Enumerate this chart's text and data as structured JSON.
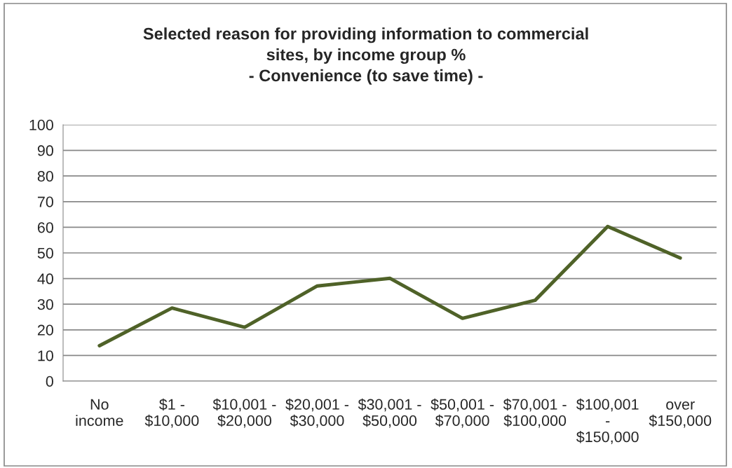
{
  "chart_data": {
    "type": "line",
    "title": "Selected reason for providing information to commercial\nsites, by income group %\n- Convenience (to save time) -",
    "categories": [
      "No\nincome",
      "$1 -\n$10,000",
      "$10,001 -\n$20,000",
      "$20,001 -\n$30,000",
      "$30,001 -\n$50,000",
      "$50,001 -\n$70,000",
      "$70,001 -\n$100,000",
      "$100,001\n-\n$150,000",
      "over\n$150,000"
    ],
    "series": [
      {
        "color": "#4f6228",
        "values": [
          13.8,
          28.5,
          21.0,
          37.1,
          40.1,
          24.5,
          31.5,
          60.3,
          48.0
        ]
      }
    ],
    "ylim": [
      0,
      100
    ],
    "yticks": [
      0,
      10,
      20,
      30,
      40,
      50,
      60,
      70,
      80,
      90,
      100
    ],
    "grid": "y",
    "legend": false,
    "marker": "none",
    "line_style": "solid"
  }
}
